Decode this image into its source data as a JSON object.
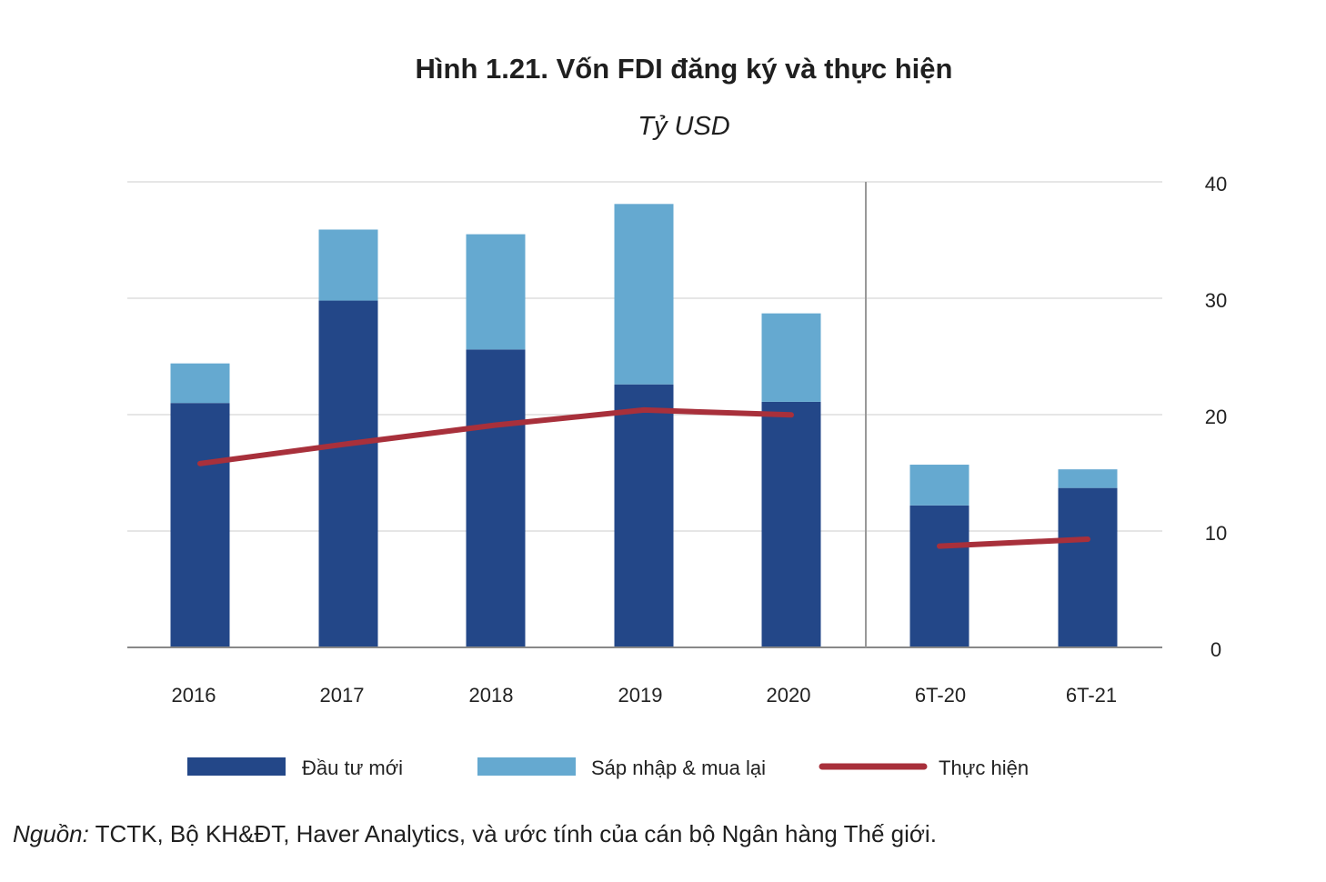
{
  "colors": {
    "new_investment": "#234788",
    "ma": "#65a9d0",
    "disbursed": "#a8303b",
    "grid": "#dddddd",
    "axis": "#888888",
    "divider": "#999999"
  },
  "chart_data": {
    "type": "bar",
    "stacked": true,
    "title": "Hình 1.21. Vốn FDI đăng ký và thực hiện",
    "subtitle": "Tỷ USD",
    "xlabel": "",
    "ylabel": "",
    "ylim": [
      0,
      40
    ],
    "yticks": [
      "0",
      "10",
      "20",
      "30",
      "40"
    ],
    "y_axis_side": "right",
    "grid": true,
    "legend_position": "bottom",
    "categories": [
      "2016",
      "2017",
      "2018",
      "2019",
      "2020",
      "6T-20",
      "6T-21"
    ],
    "divider_after_category": "2020",
    "series": [
      {
        "name": "Đầu tư mới",
        "kind": "bar",
        "values": [
          21.0,
          29.8,
          25.6,
          22.6,
          21.1,
          12.2,
          13.7
        ]
      },
      {
        "name": "Sáp nhập & mua lại",
        "kind": "bar",
        "values": [
          3.4,
          6.1,
          9.9,
          15.5,
          7.6,
          3.5,
          1.6
        ]
      },
      {
        "name": "Thực hiện",
        "kind": "line",
        "segments": [
          {
            "categories": [
              "2016",
              "2017",
              "2018",
              "2019",
              "2020"
            ],
            "values": [
              15.8,
              17.5,
              19.1,
              20.4,
              19.98
            ]
          },
          {
            "categories": [
              "6T-20",
              "6T-21"
            ],
            "values": [
              8.7,
              9.3
            ]
          }
        ]
      }
    ]
  },
  "source": {
    "lead": "Nguồn:",
    "text": " TCTK, Bộ KH&ĐT, Haver Analytics, và ước tính của cán bộ Ngân hàng Thế giới."
  }
}
